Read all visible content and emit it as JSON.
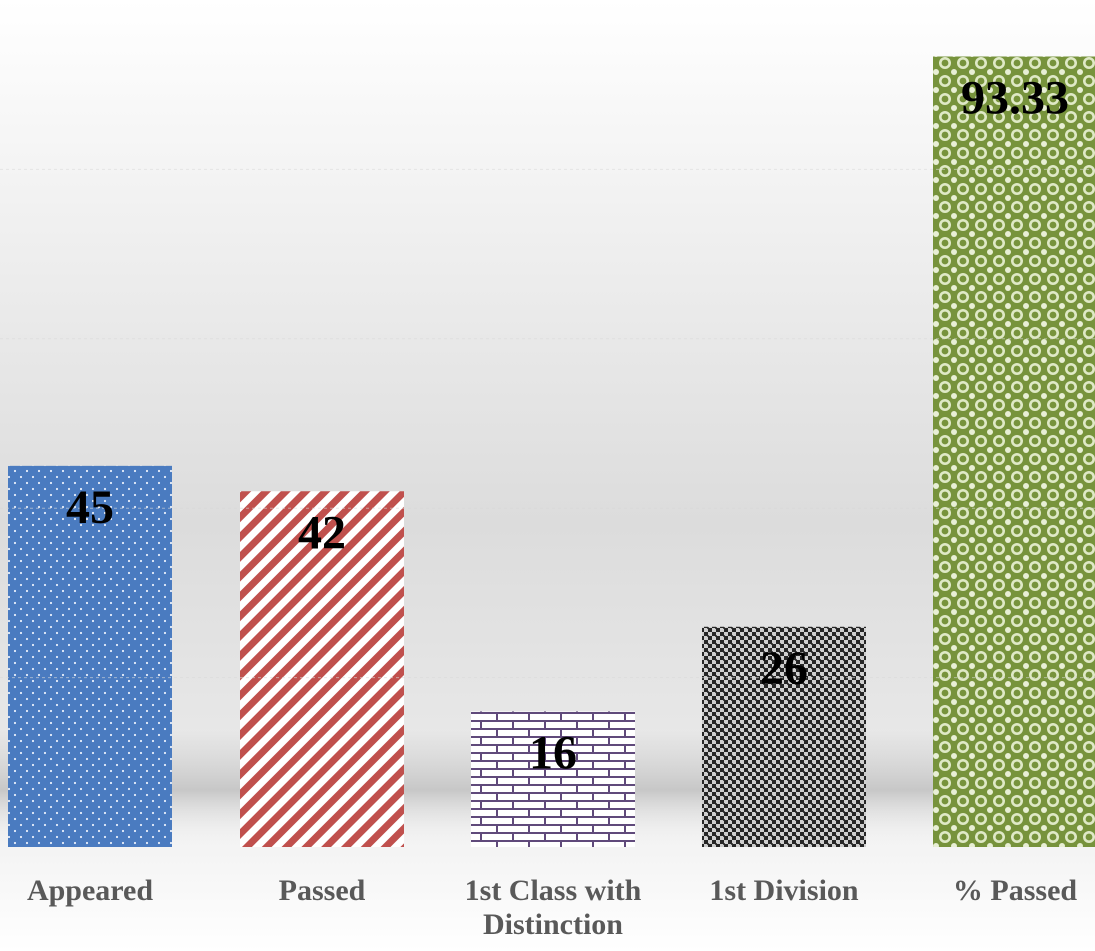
{
  "chart_data": {
    "type": "bar",
    "title": "",
    "xlabel": "",
    "ylabel": "",
    "ylim": [
      0,
      100
    ],
    "grid": true,
    "legend": "none",
    "categories": [
      [
        "Appeared"
      ],
      [
        "Passed"
      ],
      [
        "1st Class with",
        "Distinction"
      ],
      [
        "1st Division"
      ],
      [
        "% Passed"
      ]
    ],
    "values": [
      45,
      42,
      16,
      26,
      93.33
    ],
    "value_labels": [
      "45",
      "42",
      "16",
      "26",
      "93.33"
    ],
    "patterns": [
      "dots",
      "diagonal-stripes",
      "bricks",
      "checker",
      "spheres"
    ],
    "colors": {
      "appeared": "#4a7bc0",
      "passed": "#c0504d",
      "distinction": "#604a7b",
      "division": "#262626",
      "percent_passed": "#77933c",
      "category_text": "#595959",
      "value_text": "#000000"
    }
  }
}
